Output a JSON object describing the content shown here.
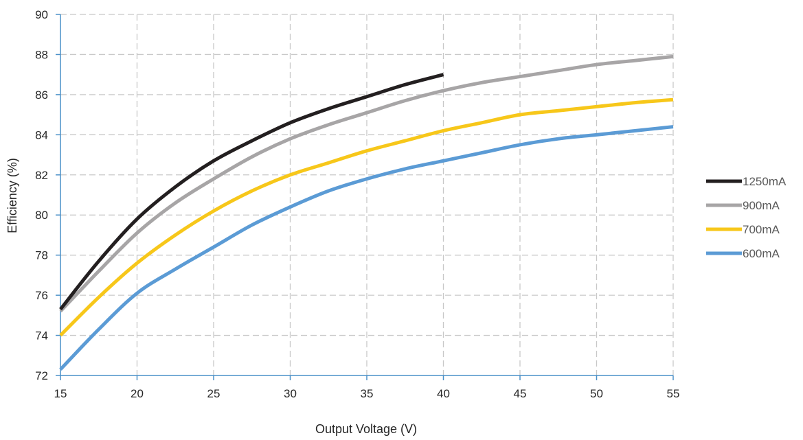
{
  "chart_data": {
    "type": "line",
    "title": "",
    "xlabel": "Output Voltage (V)",
    "ylabel": "Efficiency (%)",
    "xlim": [
      15,
      55
    ],
    "ylim": [
      72,
      90
    ],
    "xticks": [
      15,
      20,
      25,
      30,
      35,
      40,
      45,
      50,
      55
    ],
    "yticks": [
      72,
      74,
      76,
      78,
      80,
      82,
      84,
      86,
      88,
      90
    ],
    "grid": true,
    "grid_style": "dashed",
    "legend_position": "right",
    "axis_color": "#4a90c8",
    "series": [
      {
        "name": "1250mA",
        "color": "#231f20",
        "x": [
          15,
          17.5,
          20,
          22.5,
          25,
          27.5,
          30,
          32.5,
          35,
          37.5,
          40
        ],
        "y": [
          75.3,
          77.7,
          79.8,
          81.4,
          82.7,
          83.7,
          84.6,
          85.3,
          85.9,
          86.5,
          87.0
        ]
      },
      {
        "name": "900mA",
        "color": "#a7a5a6",
        "x": [
          15,
          17.5,
          20,
          22.5,
          25,
          27.5,
          30,
          32.5,
          35,
          37.5,
          40,
          42.5,
          45,
          47.5,
          50,
          52.5,
          55
        ],
        "y": [
          75.2,
          77.2,
          79.1,
          80.6,
          81.8,
          82.9,
          83.8,
          84.5,
          85.1,
          85.7,
          86.2,
          86.6,
          86.9,
          87.2,
          87.5,
          87.7,
          87.9
        ]
      },
      {
        "name": "700mA",
        "color": "#f7c71a",
        "x": [
          15,
          17.5,
          20,
          22.5,
          25,
          27.5,
          30,
          32.5,
          35,
          37.5,
          40,
          42.5,
          45,
          47.5,
          50,
          52.5,
          55
        ],
        "y": [
          74.0,
          75.9,
          77.6,
          79.0,
          80.2,
          81.2,
          82.0,
          82.6,
          83.2,
          83.7,
          84.2,
          84.6,
          85.0,
          85.2,
          85.4,
          85.6,
          85.75
        ]
      },
      {
        "name": "600mA",
        "color": "#5b9bd5",
        "x": [
          15,
          17.5,
          20,
          22.5,
          25,
          27.5,
          30,
          32.5,
          35,
          37.5,
          40,
          42.5,
          45,
          47.5,
          50,
          52.5,
          55
        ],
        "y": [
          72.3,
          74.3,
          76.1,
          77.3,
          78.4,
          79.5,
          80.4,
          81.2,
          81.8,
          82.3,
          82.7,
          83.1,
          83.5,
          83.8,
          84.0,
          84.2,
          84.4
        ]
      }
    ]
  }
}
